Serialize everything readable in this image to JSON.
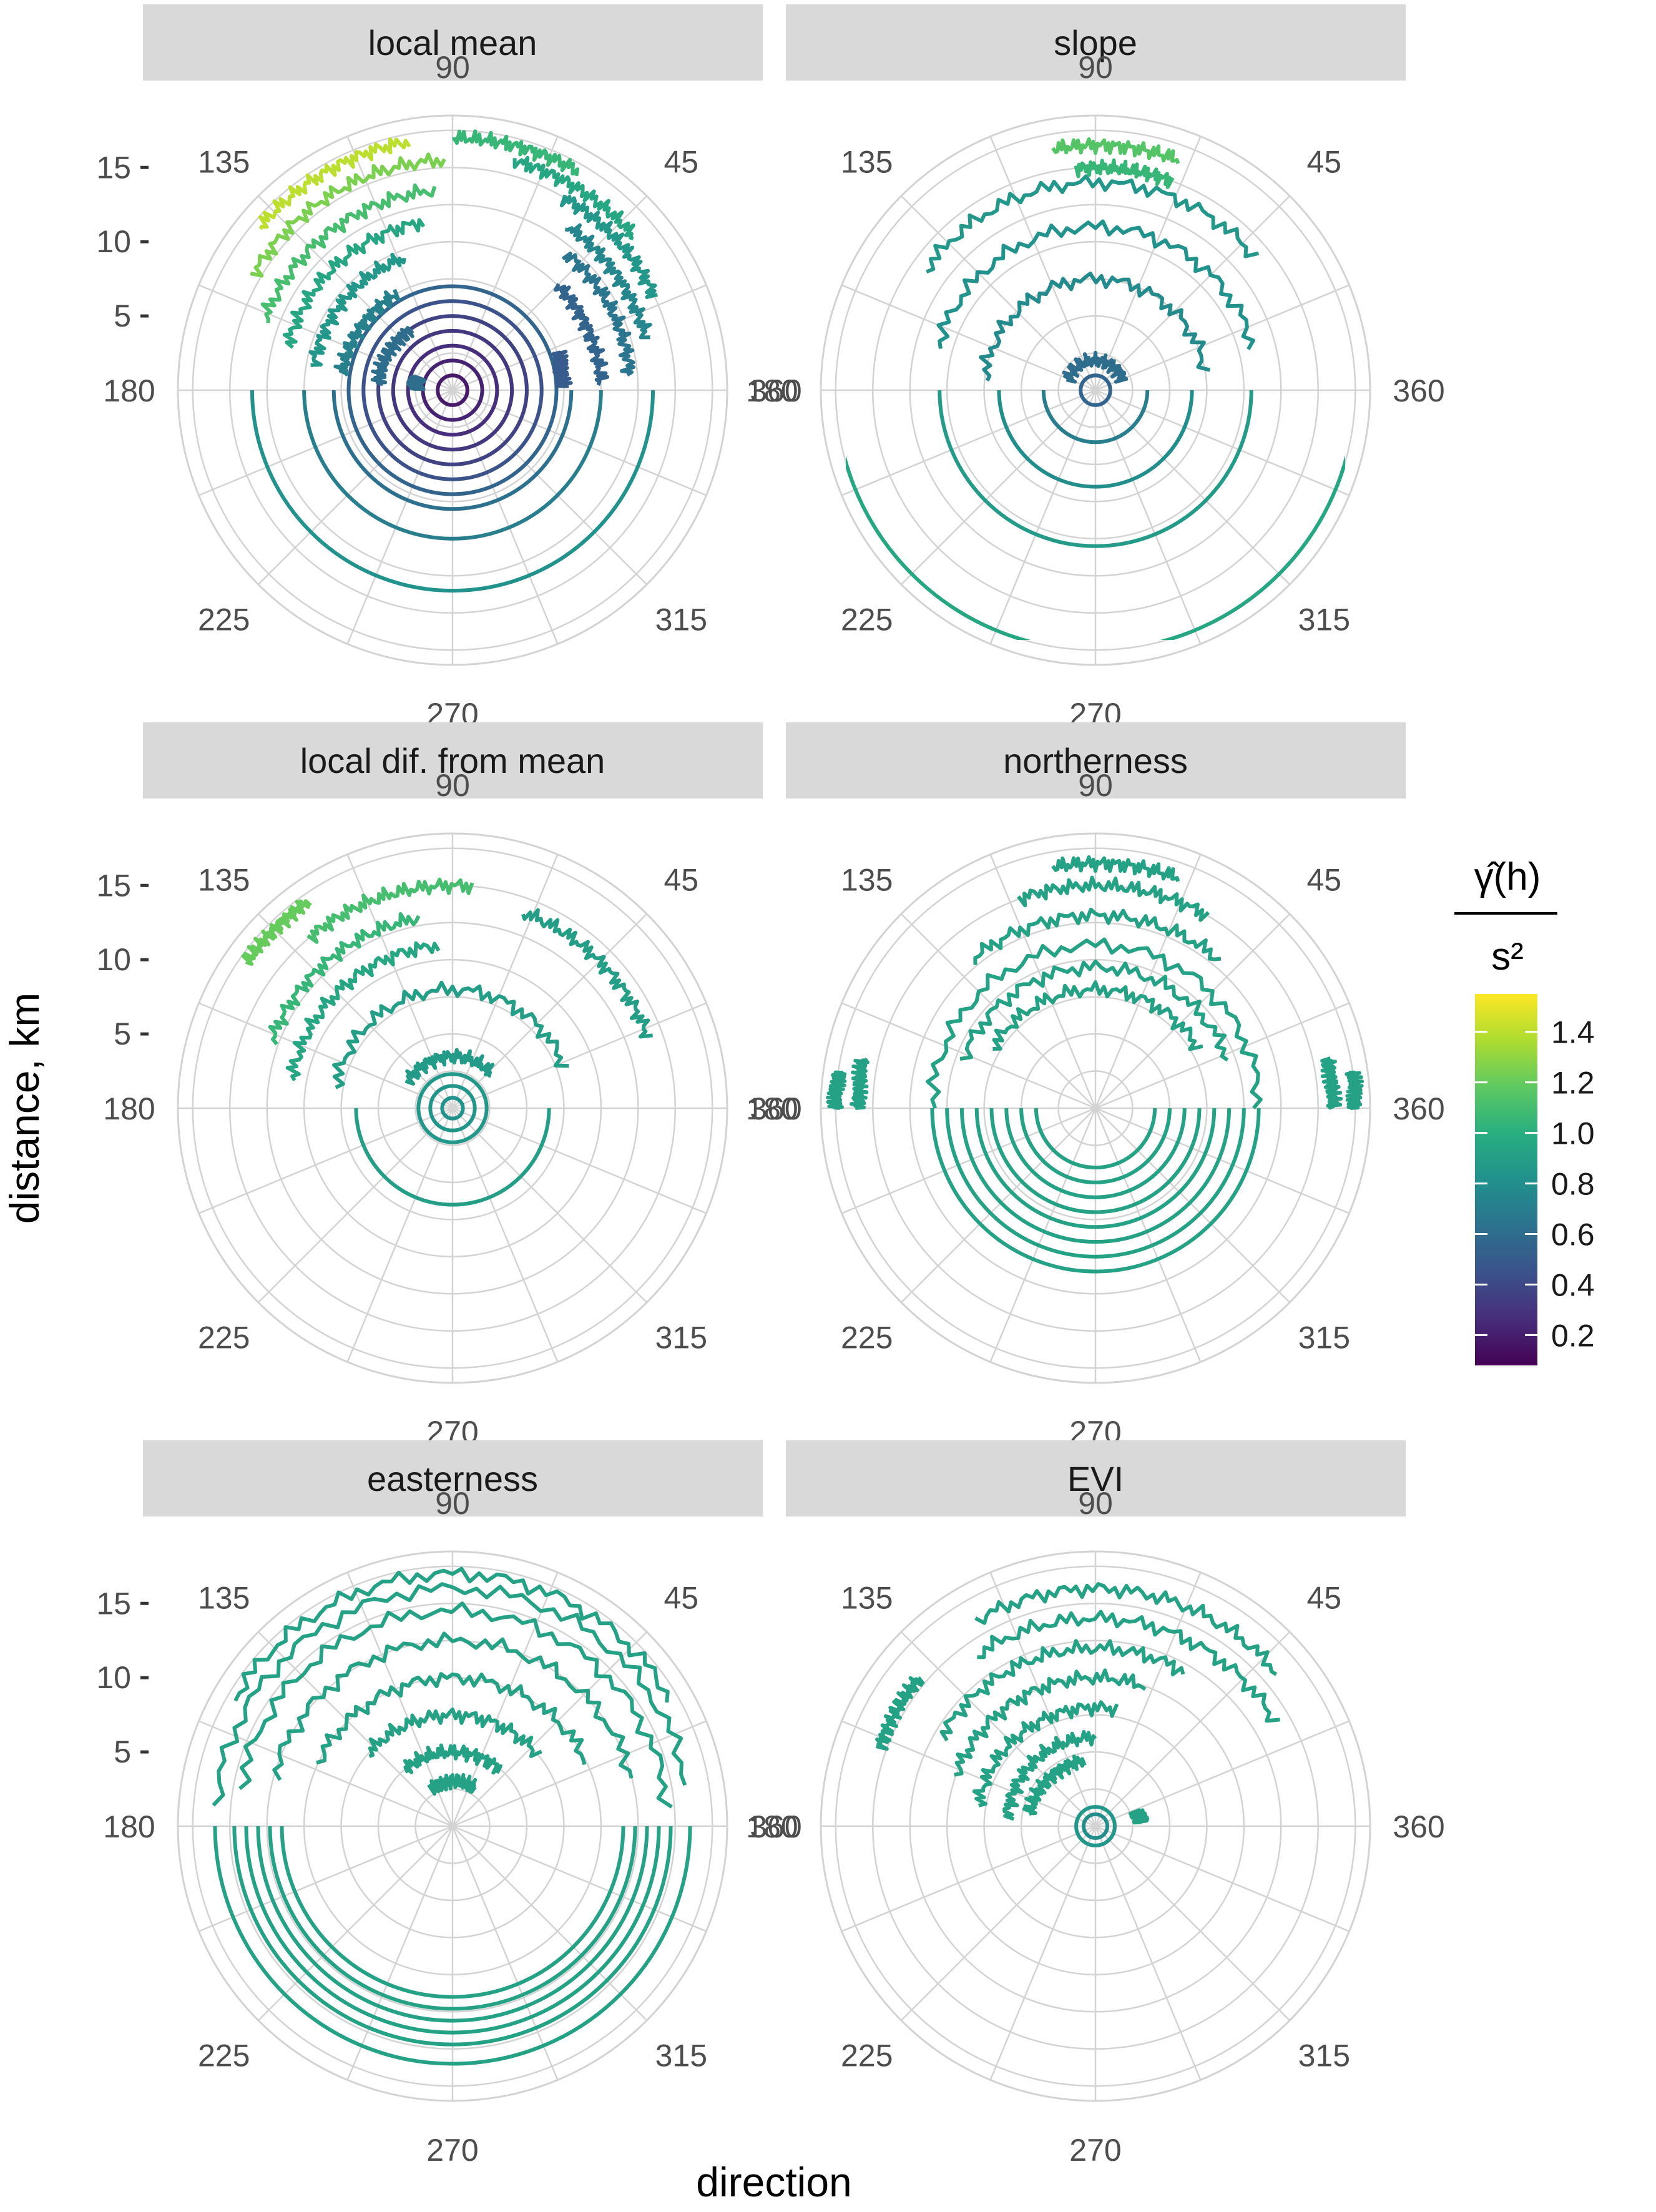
{
  "chart_data": {
    "type": "polar-contour",
    "xlabel": "direction",
    "ylabel": "distance, km",
    "direction_ticks": [
      90,
      45,
      360,
      315,
      270,
      225,
      180,
      135
    ],
    "distance_ticks": [
      5,
      10,
      15
    ],
    "distance_range": [
      0,
      18.5
    ],
    "legend": {
      "title_top": "γ̂(h)",
      "title_bottom": "s²",
      "colormap": "viridis",
      "range": [
        0.08,
        1.55
      ],
      "ticks": [
        "1.4",
        "1.2",
        "1.0",
        "0.8",
        "0.6",
        "0.4",
        "0.2"
      ],
      "tick_values": [
        1.4,
        1.2,
        1.0,
        0.8,
        0.6,
        0.4,
        0.2
      ],
      "stops": [
        "#440154",
        "#472d7b",
        "#3b528b",
        "#2c728e",
        "#21918c",
        "#28ae80",
        "#5ec962",
        "#addc30",
        "#fde725"
      ]
    },
    "panels": [
      {
        "title": "local mean",
        "rings": [
          {
            "r": 1,
            "v": 0.18,
            "half": "full"
          },
          {
            "r": 2,
            "v": 0.22,
            "half": "full"
          },
          {
            "r": 3,
            "v": 0.27,
            "half": "full"
          },
          {
            "r": 4,
            "v": 0.32,
            "half": "full"
          },
          {
            "r": 5,
            "v": 0.37,
            "half": "full"
          },
          {
            "r": 6,
            "v": 0.45,
            "half": "full"
          },
          {
            "r": 7,
            "v": 0.55,
            "half": "full"
          },
          {
            "r": 8,
            "v": 0.62,
            "half": "lower"
          },
          {
            "r": 10,
            "v": 0.7,
            "half": "lower"
          },
          {
            "r": 13.5,
            "v": 0.82,
            "half": "lower"
          }
        ],
        "arcs": [
          {
            "r": 2.5,
            "t1": 160,
            "t2": 178,
            "v": 0.6
          },
          {
            "r": 5,
            "t1": 125,
            "t2": 175,
            "v": 0.6
          },
          {
            "r": 7.5,
            "t1": 120,
            "t2": 172,
            "v": 0.72
          },
          {
            "r": 9.5,
            "t1": 110,
            "t2": 170,
            "v": 0.85
          },
          {
            "r": 11.5,
            "t1": 100,
            "t2": 165,
            "v": 0.95
          },
          {
            "r": 13.5,
            "t1": 95,
            "t2": 160,
            "v": 1.1
          },
          {
            "r": 15.5,
            "t1": 92,
            "t2": 150,
            "v": 1.25
          },
          {
            "r": 17,
            "t1": 100,
            "t2": 140,
            "v": 1.4
          },
          {
            "r": 17,
            "t1": 60,
            "t2": 90,
            "v": 1.05
          },
          {
            "r": 16,
            "t1": 40,
            "t2": 75,
            "v": 0.95
          },
          {
            "r": 15,
            "t1": 25,
            "t2": 60,
            "v": 0.85
          },
          {
            "r": 13.5,
            "t1": 15,
            "t2": 55,
            "v": 0.75
          },
          {
            "r": 12,
            "t1": 5,
            "t2": 50,
            "v": 0.65
          },
          {
            "r": 10,
            "t1": 2,
            "t2": 45,
            "v": 0.55
          },
          {
            "r": 7.5,
            "t1": 2,
            "t2": 20,
            "v": 0.5
          }
        ]
      },
      {
        "title": "slope",
        "rings": [
          {
            "r": 1,
            "v": 0.55,
            "half": "full"
          },
          {
            "r": 3.5,
            "v": 0.7,
            "half": "lower"
          },
          {
            "r": 6.5,
            "v": 0.8,
            "half": "lower"
          },
          {
            "r": 10.5,
            "v": 0.88,
            "half": "lower"
          },
          {
            "r": 17.5,
            "v": 0.95,
            "half": "lower"
          }
        ],
        "arcs": [
          {
            "r": 2,
            "t1": 20,
            "t2": 160,
            "v": 0.6
          },
          {
            "r": 7.5,
            "t1": 10,
            "t2": 175,
            "v": 0.78
          },
          {
            "r": 11,
            "t1": 15,
            "t2": 165,
            "v": 0.82
          },
          {
            "r": 14,
            "t1": 40,
            "t2": 145,
            "v": 0.85
          },
          {
            "r": 16.5,
            "t1": 70,
            "t2": 100,
            "v": 1.15
          },
          {
            "r": 15,
            "t1": 70,
            "t2": 95,
            "v": 1.05
          }
        ]
      },
      {
        "title": "local dif. from mean",
        "rings": [
          {
            "r": 0.7,
            "v": 0.82,
            "half": "full"
          },
          {
            "r": 1.5,
            "v": 0.84,
            "half": "full"
          },
          {
            "r": 2.3,
            "v": 0.85,
            "half": "full"
          },
          {
            "r": 6.5,
            "v": 0.9,
            "half": "lower"
          }
        ],
        "arcs": [
          {
            "r": 3.5,
            "t1": 40,
            "t2": 150,
            "v": 0.88
          },
          {
            "r": 8,
            "t1": 20,
            "t2": 170,
            "v": 0.9
          },
          {
            "r": 11,
            "t1": 95,
            "t2": 170,
            "v": 0.95
          },
          {
            "r": 13,
            "t1": 100,
            "t2": 160,
            "v": 1.05
          },
          {
            "r": 15,
            "t1": 85,
            "t2": 130,
            "v": 1.1
          },
          {
            "r": 17,
            "t1": 125,
            "t2": 145,
            "v": 1.2
          },
          {
            "r": 14,
            "t1": 20,
            "t2": 70,
            "v": 0.9
          }
        ]
      },
      {
        "title": "northerness",
        "rings": [
          {
            "r": 4,
            "v": 0.92,
            "half": "lower"
          },
          {
            "r": 5,
            "v": 0.92,
            "half": "lower"
          },
          {
            "r": 6,
            "v": 0.92,
            "half": "lower"
          },
          {
            "r": 7,
            "v": 0.92,
            "half": "lower"
          },
          {
            "r": 8,
            "v": 0.92,
            "half": "lower"
          },
          {
            "r": 9,
            "v": 0.92,
            "half": "lower"
          },
          {
            "r": 10,
            "v": 0.92,
            "half": "lower"
          },
          {
            "r": 11,
            "v": 0.92,
            "half": "lower"
          }
        ],
        "arcs": [
          {
            "r": 11,
            "t1": 0,
            "t2": 180,
            "v": 0.92
          },
          {
            "r": 9.5,
            "t1": 20,
            "t2": 160,
            "v": 0.92
          },
          {
            "r": 8,
            "t1": 30,
            "t2": 150,
            "v": 0.92
          },
          {
            "r": 13,
            "t1": 50,
            "t2": 130,
            "v": 0.92
          },
          {
            "r": 15,
            "t1": 60,
            "t2": 110,
            "v": 0.92
          },
          {
            "r": 16.5,
            "t1": 70,
            "t2": 100,
            "v": 0.92
          },
          {
            "r": 17.5,
            "t1": 172,
            "t2": 180,
            "v": 0.92
          },
          {
            "r": 16,
            "t1": 168,
            "t2": 180,
            "v": 0.92
          },
          {
            "r": 17.5,
            "t1": 0,
            "t2": 8,
            "v": 0.92
          },
          {
            "r": 16,
            "t1": 0,
            "t2": 12,
            "v": 0.92
          }
        ]
      },
      {
        "title": "easterness",
        "rings": [
          {
            "r": 11.5,
            "v": 0.92,
            "half": "lower"
          },
          {
            "r": 12.3,
            "v": 0.92,
            "half": "lower"
          },
          {
            "r": 13.1,
            "v": 0.92,
            "half": "lower"
          },
          {
            "r": 13.9,
            "v": 0.92,
            "half": "lower"
          },
          {
            "r": 14.7,
            "v": 0.92,
            "half": "lower"
          },
          {
            "r": 16,
            "v": 0.92,
            "half": "lower"
          }
        ],
        "arcs": [
          {
            "r": 17,
            "t1": 30,
            "t2": 150,
            "v": 0.92
          },
          {
            "r": 16,
            "t1": 10,
            "t2": 175,
            "v": 0.92
          },
          {
            "r": 14.5,
            "t1": 5,
            "t2": 170,
            "v": 0.92
          },
          {
            "r": 12.5,
            "t1": 15,
            "t2": 165,
            "v": 0.92
          },
          {
            "r": 10,
            "t1": 25,
            "t2": 155,
            "v": 0.92
          },
          {
            "r": 7.5,
            "t1": 40,
            "t2": 140,
            "v": 0.92
          },
          {
            "r": 5,
            "t1": 50,
            "t2": 130,
            "v": 0.92
          },
          {
            "r": 3,
            "t1": 60,
            "t2": 120,
            "v": 0.92
          }
        ]
      },
      {
        "title": "EVI",
        "rings": [
          {
            "r": 0.8,
            "v": 0.8,
            "half": "full"
          },
          {
            "r": 1.3,
            "v": 0.85,
            "half": "full"
          }
        ],
        "arcs": [
          {
            "r": 16,
            "t1": 40,
            "t2": 120,
            "v": 0.92
          },
          {
            "r": 14,
            "t1": 30,
            "t2": 125,
            "v": 0.92
          },
          {
            "r": 12,
            "t1": 60,
            "t2": 150,
            "v": 0.92
          },
          {
            "r": 10,
            "t1": 70,
            "t2": 160,
            "v": 0.92
          },
          {
            "r": 8,
            "t1": 80,
            "t2": 170,
            "v": 0.92
          },
          {
            "r": 6,
            "t1": 90,
            "t2": 175,
            "v": 0.92
          },
          {
            "r": 4.5,
            "t1": 100,
            "t2": 170,
            "v": 0.92
          },
          {
            "r": 3,
            "t1": 5,
            "t2": 20,
            "v": 0.92
          },
          {
            "r": 15.5,
            "t1": 140,
            "t2": 160,
            "v": 0.92
          }
        ]
      }
    ]
  }
}
